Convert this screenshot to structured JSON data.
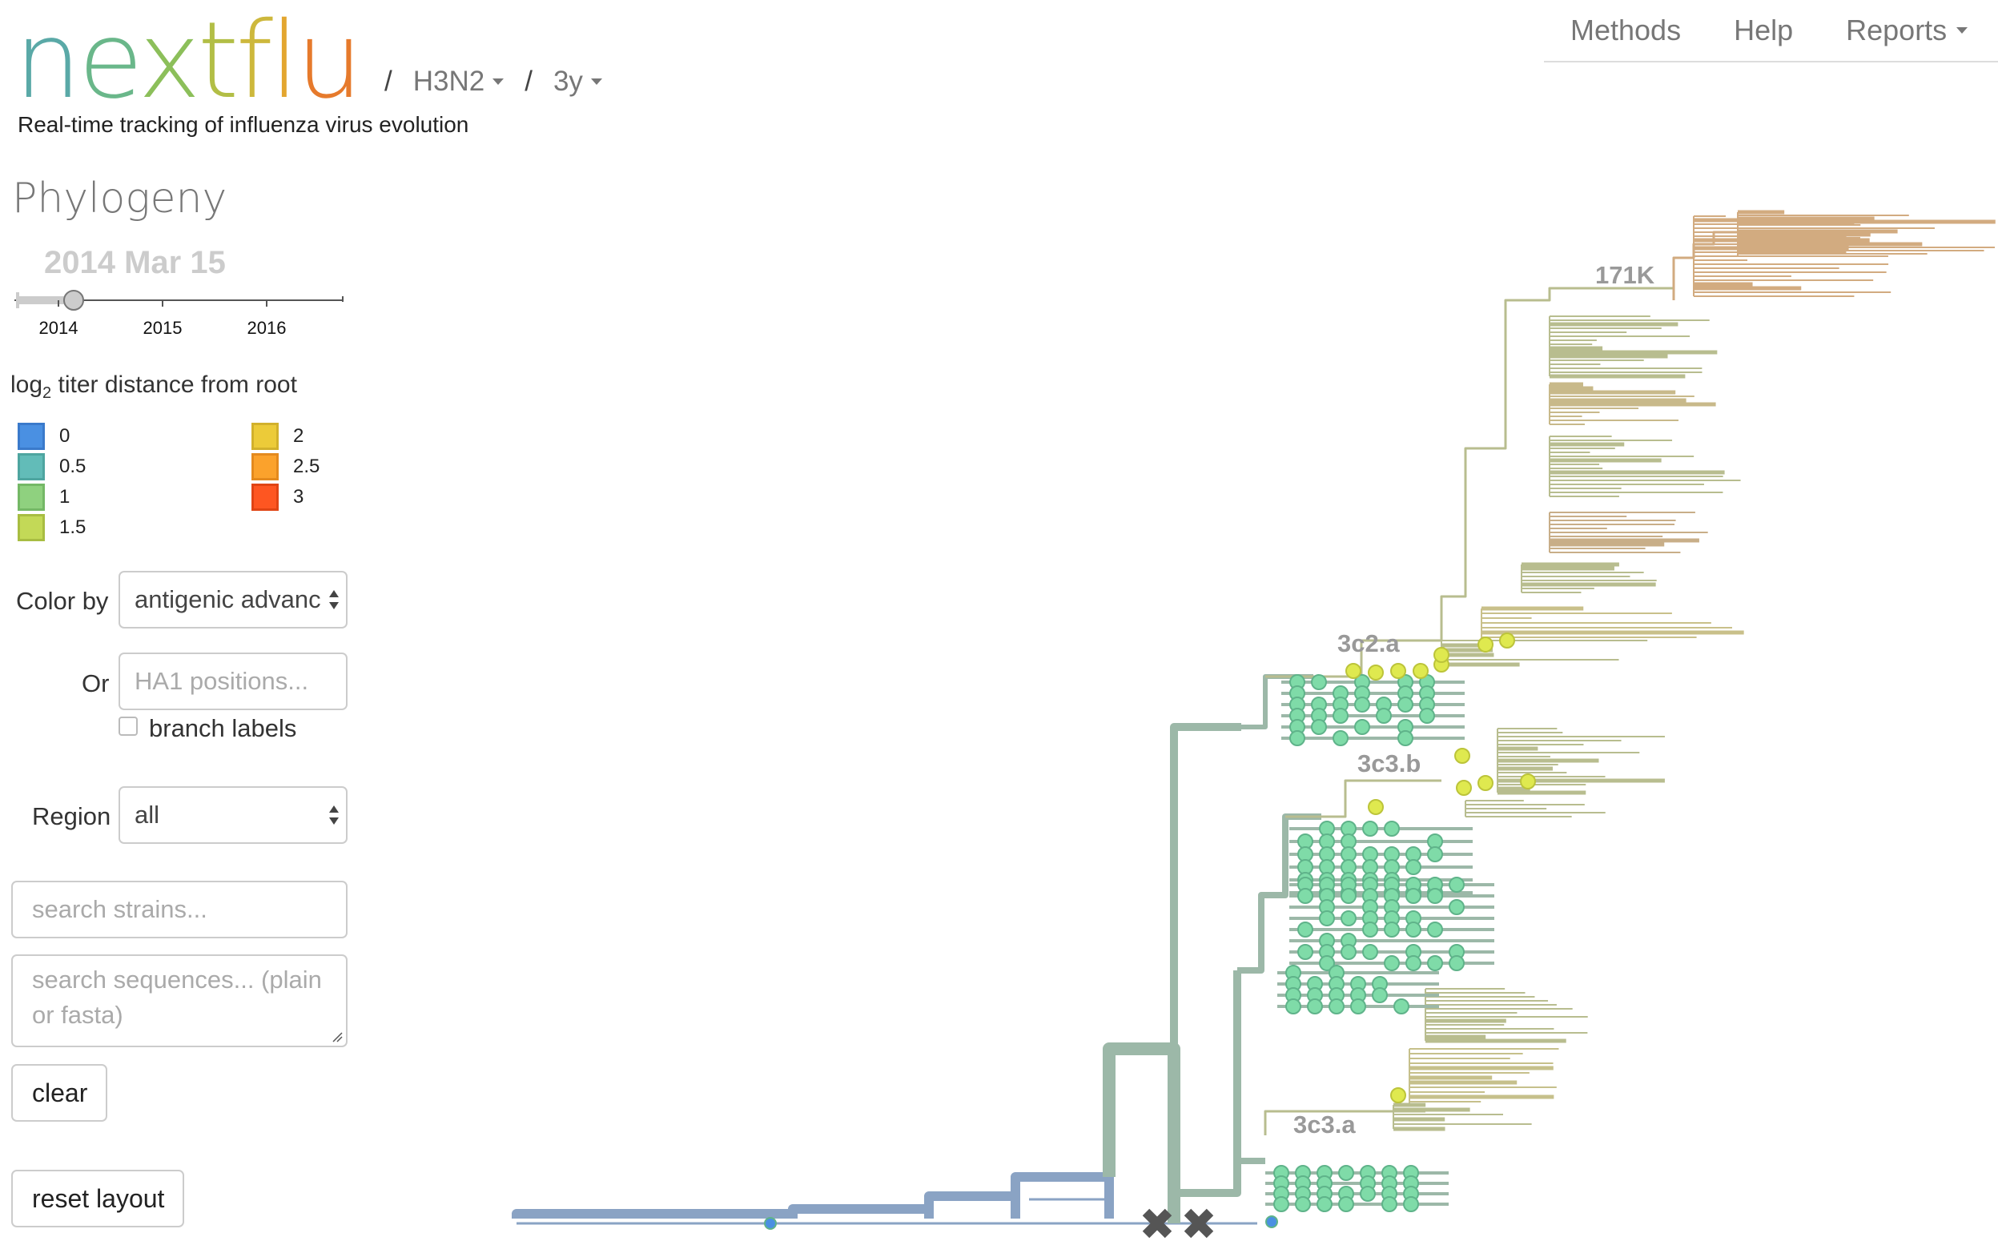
{
  "header": {
    "logo_letters": [
      {
        "ch": "n",
        "color": "#5aa9a7"
      },
      {
        "ch": "e",
        "color": "#6ab78a"
      },
      {
        "ch": "x",
        "color": "#8cbf5a"
      },
      {
        "ch": "t",
        "color": "#b2be46"
      },
      {
        "ch": "f",
        "color": "#cdb83c"
      },
      {
        "ch": "l",
        "color": "#e3a630"
      },
      {
        "ch": "u",
        "color": "#e67a2c"
      }
    ],
    "separator": "/",
    "lineage": "H3N2",
    "resolution": "3y",
    "tagline": "Real-time tracking of influenza virus evolution"
  },
  "nav": {
    "items": [
      {
        "label": "Methods",
        "dropdown": false
      },
      {
        "label": "Help",
        "dropdown": false
      },
      {
        "label": "Reports",
        "dropdown": true
      }
    ]
  },
  "panel": {
    "title": "Phylogeny",
    "date": "2014 Mar 15",
    "date_slider": {
      "ticks": [
        "2014",
        "2015",
        "2016"
      ],
      "position_fraction": 0.16
    },
    "legend": {
      "title_prefix": "log",
      "title_sub": "2",
      "title_suffix": " titer distance from root",
      "items": [
        {
          "label": "0",
          "fill": "#4a90e2",
          "stroke": "#3a7acb"
        },
        {
          "label": "0.5",
          "fill": "#62bcb8",
          "stroke": "#4ea5a0"
        },
        {
          "label": "1",
          "fill": "#8fd17f",
          "stroke": "#74b866"
        },
        {
          "label": "1.5",
          "fill": "#c3d957",
          "stroke": "#a8bd42"
        },
        {
          "label": "2",
          "fill": "#eccb39",
          "stroke": "#d2b12c"
        },
        {
          "label": "2.5",
          "fill": "#fba22c",
          "stroke": "#e48a1e"
        },
        {
          "label": "3",
          "fill": "#fe5621",
          "stroke": "#e04414"
        }
      ]
    },
    "color_by": {
      "label": "Color by",
      "value": "antigenic advanc"
    },
    "positions": {
      "label": "Or",
      "placeholder": "HA1 positions..."
    },
    "branch_labels": {
      "label": "branch labels",
      "checked": false
    },
    "region": {
      "label": "Region",
      "value": "all"
    },
    "search_strains": {
      "placeholder": "search strains..."
    },
    "search_sequences": {
      "placeholder_line1": "search sequences... (plain",
      "placeholder_line2": "or fasta)"
    },
    "clear_button": "clear",
    "reset_button": "reset layout"
  },
  "tree": {
    "clade_labels": [
      "171K",
      "3c2.a",
      "3c3.b",
      "3c3.a"
    ],
    "colors": {
      "root_branch": "#8aa3c4",
      "trunk_branch": "#9cb8a8",
      "olive_branch": "#b8bd8f",
      "tan_branch": "#d2ab80",
      "tip_green": "#7fdba8",
      "tip_yellow": "#dfe94f",
      "tip_blue": "#4a90e2",
      "marker_x": "#555555"
    }
  }
}
